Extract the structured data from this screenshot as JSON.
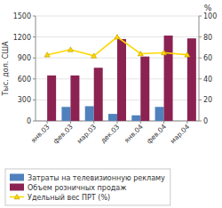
{
  "chart_data": {
    "type": "bar",
    "categories": [
      "янв.03",
      "фев.03",
      "мар.03",
      "дек.03",
      "янв.04",
      "фев.04",
      "мар.04"
    ],
    "ylabel": "Тыс. дол. США",
    "y2label": "%",
    "series": [
      {
        "name": "Затраты на телевизионную рекламу",
        "color": "#4f81bd",
        "values": [
          0,
          200,
          210,
          100,
          80,
          200,
          0
        ]
      },
      {
        "name": "Объем розничных продаж",
        "color": "#8B2252",
        "values": [
          650,
          650,
          760,
          1170,
          920,
          1220,
          1180
        ]
      },
      {
        "name": "Удельный вес ПРТ (%)",
        "type": "line",
        "axis": "y2",
        "color": "#FFD700",
        "marker": "triangle",
        "values": [
          63,
          68,
          62,
          80,
          64,
          65,
          63
        ]
      }
    ],
    "ylim": [
      0,
      1500
    ],
    "yticks": [
      0,
      300,
      600,
      900,
      1200,
      1500
    ],
    "y2lim": [
      0,
      100
    ],
    "y2ticks": [
      0,
      20,
      40,
      60,
      80,
      100
    ],
    "grid": true,
    "legend": "lower left"
  }
}
